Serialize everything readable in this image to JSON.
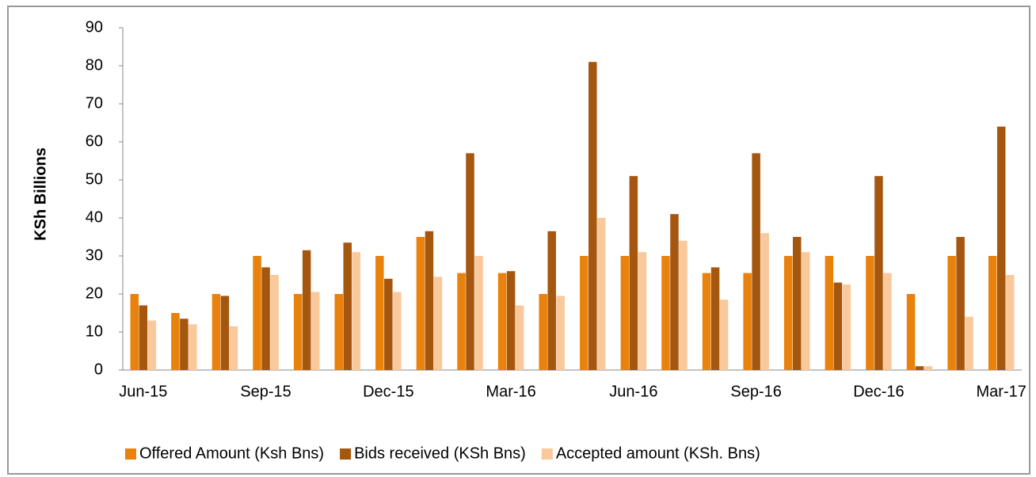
{
  "chart_data": {
    "type": "bar",
    "y_label": "KSh Billions",
    "categories": [
      "Jun-15",
      null,
      null,
      "Sep-15",
      null,
      null,
      "Dec-15",
      null,
      null,
      "Mar-16",
      null,
      null,
      "Jun-16",
      null,
      null,
      "Sep-16",
      null,
      null,
      "Dec-16",
      null,
      null,
      "Mar-17"
    ],
    "series": [
      {
        "name": "Offered Amount (Ksh Bns)",
        "color": "#e8820c",
        "values": [
          20,
          15,
          20,
          30,
          20,
          20,
          30,
          35,
          25.5,
          25.5,
          20,
          30,
          30,
          30,
          25.5,
          25.5,
          30,
          30,
          30,
          20,
          30,
          30
        ]
      },
      {
        "name": "Bids received (KSh Bns)",
        "color": "#a5560f",
        "values": [
          17,
          13.5,
          19.5,
          27,
          31.5,
          33.5,
          24,
          36.5,
          57,
          26,
          36.5,
          81,
          51,
          41,
          27,
          57,
          35,
          23,
          51,
          1,
          35,
          64
        ]
      },
      {
        "name": "Accepted amount (KSh. Bns)",
        "color": "#f9c89b",
        "values": [
          13,
          12,
          11.5,
          25,
          20.5,
          31,
          20.5,
          24.5,
          30,
          17,
          19.5,
          40,
          31,
          34,
          18.5,
          36,
          31,
          22.5,
          25.5,
          1,
          14,
          25
        ]
      }
    ],
    "ylim": [
      0,
      90
    ],
    "yticks": [
      0,
      10,
      20,
      30,
      40,
      50,
      60,
      70,
      80,
      90
    ],
    "legend": "bottom",
    "grid": false
  }
}
